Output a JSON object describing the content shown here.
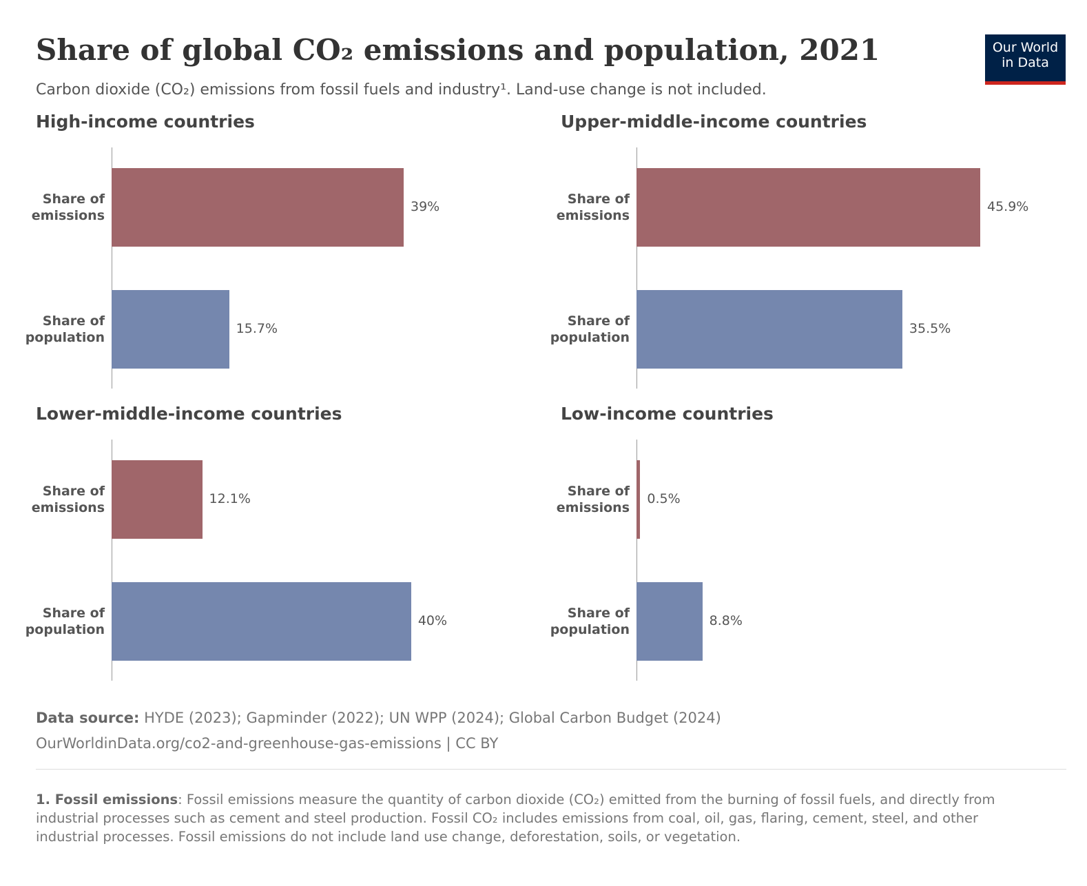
{
  "title": "Share of global CO₂ emissions and population, 2021",
  "subtitle": "Carbon dioxide (CO₂) emissions from fossil fuels and industry¹. Land-use change is not included.",
  "logo": [
    "Our World",
    "in Data"
  ],
  "chart_data": [
    {
      "type": "bar",
      "orientation": "horizontal",
      "title": "High-income countries",
      "categories": [
        "Share of emissions",
        "Share of population"
      ],
      "values": [
        39,
        15.7
      ],
      "value_labels": [
        "39%",
        "15.7%"
      ],
      "colors": [
        "#a0666a",
        "#7587ae"
      ],
      "xlim": [
        0,
        45.9
      ]
    },
    {
      "type": "bar",
      "orientation": "horizontal",
      "title": "Upper-middle-income countries",
      "categories": [
        "Share of emissions",
        "Share of population"
      ],
      "values": [
        45.9,
        35.5
      ],
      "value_labels": [
        "45.9%",
        "35.5%"
      ],
      "colors": [
        "#a0666a",
        "#7587ae"
      ],
      "xlim": [
        0,
        45.9
      ]
    },
    {
      "type": "bar",
      "orientation": "horizontal",
      "title": "Lower-middle-income countries",
      "categories": [
        "Share of emissions",
        "Share of population"
      ],
      "values": [
        12.1,
        40
      ],
      "value_labels": [
        "12.1%",
        "40%"
      ],
      "colors": [
        "#a0666a",
        "#7587ae"
      ],
      "xlim": [
        0,
        45.9
      ]
    },
    {
      "type": "bar",
      "orientation": "horizontal",
      "title": "Low-income countries",
      "categories": [
        "Share of emissions",
        "Share of population"
      ],
      "values": [
        0.5,
        8.8
      ],
      "value_labels": [
        "0.5%",
        "8.8%"
      ],
      "colors": [
        "#a0666a",
        "#7587ae"
      ],
      "xlim": [
        0,
        45.9
      ]
    }
  ],
  "source": {
    "label": "Data source:",
    "text": "HYDE (2023); Gapminder (2022); UN WPP (2024); Global Carbon Budget (2024)",
    "url": "OurWorldinData.org/co2-and-greenhouse-gas-emissions",
    "license": "| CC BY"
  },
  "footnote": {
    "label": "1. Fossil emissions",
    "text": ": Fossil emissions measure the quantity of carbon dioxide (CO₂) emitted from the burning of fossil fuels, and directly from industrial processes such as cement and steel production. Fossil CO₂ includes emissions from coal, oil, gas, flaring, cement, steel, and other industrial processes. Fossil emissions do not include land use change, deforestation, soils, or vegetation."
  }
}
